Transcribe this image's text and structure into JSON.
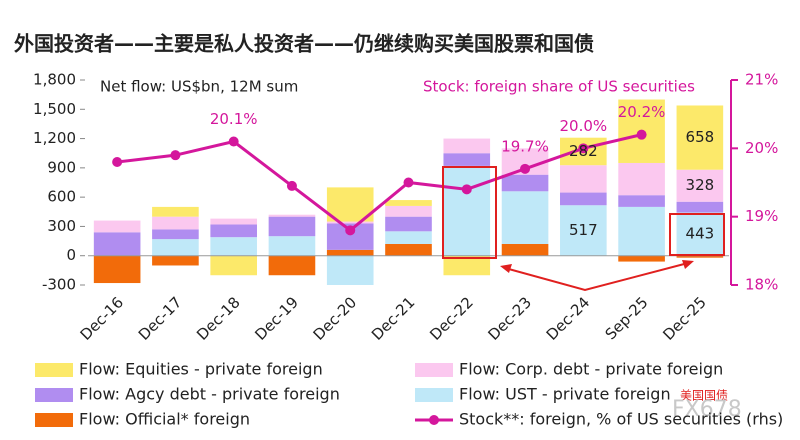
{
  "chart_data": {
    "type": "bar_line",
    "title": "外国投资者——主要是私人投资者——仍继续购买美国股票和国债",
    "left_note": "Net flow: US$bn, 12M sum",
    "right_note": "Stock: foreign share of US securities",
    "categories": [
      "Dec-16",
      "Dec-17",
      "Dec-18",
      "Dec-19",
      "Dec-20",
      "Dec-21",
      "Dec-22",
      "Dec-23",
      "Dec-24",
      "Sep-25",
      "Dec-25"
    ],
    "series": [
      {
        "name": "Flow: Equities - private foreign",
        "type": "bar",
        "color": "#fce96a",
        "values": [
          0,
          100,
          -200,
          0,
          350,
          60,
          -200,
          0,
          282,
          650,
          658
        ],
        "value_labels": [
          null,
          null,
          null,
          null,
          null,
          null,
          null,
          null,
          "282",
          null,
          "658"
        ]
      },
      {
        "name": "Flow: Corp. debt - private foreign",
        "type": "bar",
        "color": "#fbc8ef",
        "values": [
          120,
          130,
          60,
          20,
          20,
          110,
          150,
          270,
          280,
          330,
          328
        ],
        "value_labels": [
          null,
          null,
          null,
          null,
          null,
          null,
          null,
          null,
          null,
          null,
          "328"
        ]
      },
      {
        "name": "Flow: Agcy debt - private foreign",
        "type": "bar",
        "color": "#b08df0",
        "values": [
          240,
          100,
          130,
          200,
          270,
          150,
          130,
          170,
          130,
          120,
          110
        ]
      },
      {
        "name": "Flow: UST - private foreign",
        "type": "bar",
        "color": "#bfe8f8",
        "values": [
          0,
          170,
          190,
          200,
          -300,
          130,
          920,
          540,
          517,
          500,
          443
        ],
        "value_labels": [
          null,
          null,
          null,
          null,
          null,
          null,
          null,
          null,
          "517",
          null,
          "443"
        ]
      },
      {
        "name": "Flow: Official* foreign",
        "type": "bar",
        "color": "#f26b0a",
        "values": [
          -280,
          -100,
          0,
          -200,
          60,
          120,
          0,
          120,
          0,
          -60,
          -20
        ]
      },
      {
        "name": "Stock**: foreign, % of US securities (rhs)",
        "type": "line",
        "axis": "y2",
        "color": "#d4179c",
        "values": [
          19.8,
          19.9,
          20.1,
          19.45,
          18.8,
          19.5,
          19.4,
          19.7,
          20.0,
          20.2,
          null
        ],
        "value_labels": [
          null,
          null,
          "20.1%",
          null,
          null,
          null,
          null,
          "19.7%",
          "20.0%",
          "20.2%",
          null
        ]
      }
    ],
    "ylim": [
      -300,
      1800
    ],
    "yticks": [
      -300,
      0,
      300,
      600,
      900,
      {
        "value": 1200,
        "label": "1,200"
      },
      {
        "value": 1500,
        "label": "1,500"
      },
      {
        "value": 1800,
        "label": "1,800"
      }
    ],
    "y2lim": [
      18,
      21
    ],
    "y2ticks": [
      {
        "value": 18,
        "label": "18%"
      },
      {
        "value": 19,
        "label": "19%"
      },
      {
        "value": 20,
        "label": "20%"
      },
      {
        "value": 21,
        "label": "21%"
      }
    ],
    "watermark": {
      "label": "美国国债",
      "brand": "FX678"
    }
  }
}
